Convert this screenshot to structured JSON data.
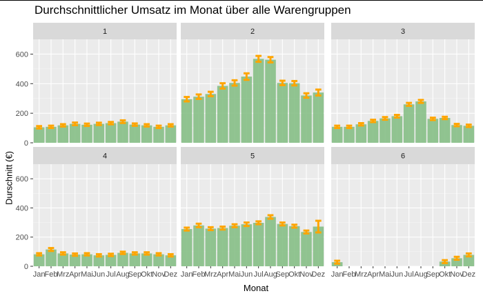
{
  "chart_data": {
    "type": "bar",
    "title": "Durchschnittlicher Umsatz im Monat über alle Warengruppen",
    "xlabel": "Monat",
    "ylabel": "Durschnitt (€)",
    "ylim": [
      0,
      700
    ],
    "yticks": [
      0,
      200,
      400,
      600
    ],
    "categories": [
      "Jan",
      "Feb",
      "Mrz",
      "Apr",
      "Mai",
      "Jun",
      "Jul",
      "Aug",
      "Sep",
      "Okt",
      "Nov",
      "Dez"
    ],
    "grid": true,
    "colors": {
      "bar": "#86bf86",
      "errorbar": "#ffa500",
      "panel_bg": "#ebebeb",
      "strip_bg": "#d9d9d9",
      "grid_major": "#ffffff",
      "grid_minor": "#f5f5f5"
    },
    "facets": [
      {
        "label": "1",
        "values": [
          105,
          108,
          118,
          128,
          122,
          128,
          133,
          143,
          123,
          118,
          108,
          118
        ],
        "errors": [
          8,
          8,
          8,
          9,
          8,
          8,
          8,
          9,
          8,
          8,
          8,
          8
        ]
      },
      {
        "label": "2",
        "values": [
          295,
          312,
          330,
          385,
          405,
          448,
          568,
          562,
          405,
          403,
          320,
          340
        ],
        "errors": [
          15,
          15,
          15,
          18,
          18,
          22,
          20,
          18,
          15,
          15,
          15,
          20
        ]
      },
      {
        "label": "3",
        "values": [
          108,
          108,
          125,
          148,
          165,
          180,
          260,
          280,
          162,
          168,
          120,
          115
        ],
        "errors": [
          8,
          8,
          8,
          8,
          9,
          9,
          10,
          10,
          8,
          8,
          8,
          8
        ]
      },
      {
        "label": "4",
        "values": [
          82,
          115,
          88,
          80,
          82,
          75,
          78,
          92,
          88,
          88,
          82,
          75
        ],
        "errors": [
          8,
          10,
          8,
          8,
          8,
          8,
          8,
          8,
          8,
          8,
          8,
          8
        ]
      },
      {
        "label": "5",
        "values": [
          255,
          280,
          258,
          262,
          278,
          288,
          298,
          338,
          290,
          275,
          235,
          272
        ],
        "errors": [
          10,
          12,
          10,
          10,
          10,
          12,
          10,
          12,
          10,
          10,
          10,
          40
        ]
      },
      {
        "label": "6",
        "values": [
          28,
          null,
          null,
          null,
          null,
          null,
          null,
          null,
          null,
          32,
          55,
          78
        ],
        "errors": [
          10,
          0,
          0,
          0,
          0,
          0,
          0,
          0,
          0,
          10,
          10,
          10
        ]
      }
    ]
  }
}
